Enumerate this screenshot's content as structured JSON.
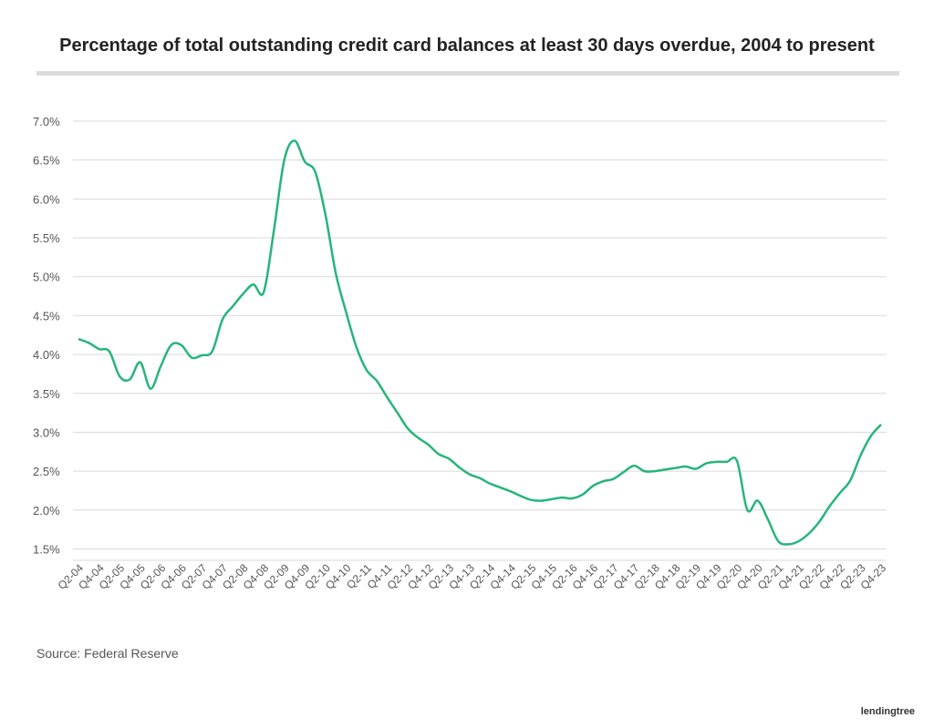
{
  "chart_data": {
    "type": "line",
    "title": "Percentage of total outstanding credit card balances at least 30 days overdue, 2004 to present",
    "source": "Source: Federal Reserve",
    "brand": "lendingtree",
    "categories": [
      "Q2-04",
      null,
      "Q4-04",
      null,
      "Q2-05",
      null,
      "Q4-05",
      null,
      "Q2-06",
      null,
      "Q4-06",
      null,
      "Q2-07",
      null,
      "Q4-07",
      null,
      "Q2-08",
      null,
      "Q4-08",
      null,
      "Q2-09",
      null,
      "Q4-09",
      null,
      "Q2-10",
      null,
      "Q4-10",
      null,
      "Q2-11",
      null,
      "Q4-11",
      null,
      "Q2-12",
      null,
      "Q4-12",
      null,
      "Q2-13",
      null,
      "Q4-13",
      null,
      "Q2-14",
      null,
      "Q4-14",
      null,
      "Q2-15",
      null,
      "Q4-15",
      null,
      "Q2-16",
      null,
      "Q4-16",
      null,
      "Q2-17",
      null,
      "Q4-17",
      null,
      "Q2-18",
      null,
      "Q4-18",
      null,
      "Q2-19",
      null,
      "Q4-19",
      null,
      "Q2-20",
      null,
      "Q4-20",
      null,
      "Q2-21",
      null,
      "Q4-21",
      null,
      "Q2-22",
      null,
      "Q4-22",
      null,
      "Q2-23",
      null,
      "Q4-23"
    ],
    "series": [
      {
        "name": "30+ days overdue",
        "color": "#26b57a",
        "values": [
          4.2,
          4.15,
          4.07,
          4.04,
          3.72,
          3.68,
          3.9,
          3.56,
          3.85,
          4.12,
          4.12,
          3.96,
          3.99,
          4.04,
          4.45,
          4.62,
          4.78,
          4.9,
          4.8,
          5.6,
          6.5,
          6.75,
          6.48,
          6.35,
          5.8,
          5.05,
          4.55,
          4.1,
          3.8,
          3.66,
          3.45,
          3.25,
          3.05,
          2.93,
          2.84,
          2.72,
          2.66,
          2.55,
          2.46,
          2.41,
          2.34,
          2.29,
          2.24,
          2.18,
          2.13,
          2.12,
          2.14,
          2.16,
          2.15,
          2.2,
          2.31,
          2.37,
          2.4,
          2.49,
          2.57,
          2.5,
          2.5,
          2.52,
          2.54,
          2.56,
          2.53,
          2.6,
          2.62,
          2.62,
          2.63,
          2.0,
          2.12,
          1.88,
          1.6,
          1.56,
          1.6,
          1.7,
          1.85,
          2.05,
          2.22,
          2.38,
          2.7,
          2.95,
          3.1
        ]
      }
    ],
    "ylim": [
      1.4,
      7.0
    ],
    "yticks": [
      {
        "value": 1.5,
        "label": "1.5%"
      },
      {
        "value": 2.0,
        "label": "2.0%"
      },
      {
        "value": 2.5,
        "label": "2.5%"
      },
      {
        "value": 3.0,
        "label": "3.0%"
      },
      {
        "value": 3.5,
        "label": "3.5%"
      },
      {
        "value": 4.0,
        "label": "4.0%"
      },
      {
        "value": 4.5,
        "label": "4.5%"
      },
      {
        "value": 5.0,
        "label": "5.0%"
      },
      {
        "value": 5.5,
        "label": "5.5%"
      },
      {
        "value": 6.0,
        "label": "6.0%"
      },
      {
        "value": 6.5,
        "label": "6.5%"
      },
      {
        "value": 7.0,
        "label": "7.0%"
      }
    ],
    "grid": true
  }
}
